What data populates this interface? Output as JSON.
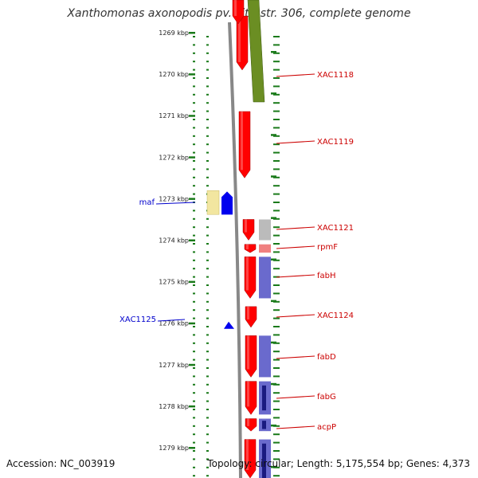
{
  "title": "Xanthomonas axonopodis pv. citri str. 306, complete genome",
  "footer": {
    "accession": "Accession: NC_003919",
    "topology": "Topology: circular; Length: 5,175,554 bp; Genes: 4,373"
  },
  "colors": {
    "backbone": "#888888",
    "cds": "#ff0000",
    "right_label": "#cc0000",
    "left_label": "#0000cc",
    "left_strand": "#0000ee",
    "tick": "#1a7a1a",
    "trna_olive": "#6b8e23",
    "pale_yellow": "#f2e6a0",
    "grey_feature": "#bbbbbb",
    "periwinkle": "#6a6acd",
    "navy": "#1a1a80"
  },
  "axis": {
    "ticks": [
      {
        "kbp": 1269,
        "label": "1269 kbp"
      },
      {
        "kbp": 1270,
        "label": "1270 kbp"
      },
      {
        "kbp": 1271,
        "label": "1271 kbp"
      },
      {
        "kbp": 1272,
        "label": "1272 kbp"
      },
      {
        "kbp": 1273,
        "label": "1273 kbp"
      },
      {
        "kbp": 1274,
        "label": "1274 kbp"
      },
      {
        "kbp": 1275,
        "label": "1275 kbp"
      },
      {
        "kbp": 1276,
        "label": "1276 kbp"
      },
      {
        "kbp": 1277,
        "label": "1277 kbp"
      },
      {
        "kbp": 1278,
        "label": "1278 kbp"
      },
      {
        "kbp": 1279,
        "label": "1279 kbp"
      }
    ]
  },
  "genes": {
    "right": [
      {
        "name": "XAC1118",
        "start_kbp": 1268.6,
        "end_kbp": 1269.9
      },
      {
        "name": "XAC1119",
        "start_kbp": 1270.9,
        "end_kbp": 1272.5
      },
      {
        "name": "XAC1121",
        "start_kbp": 1273.5,
        "end_kbp": 1274.0
      },
      {
        "name": "rpmF",
        "start_kbp": 1274.1,
        "end_kbp": 1274.3
      },
      {
        "name": "fabH",
        "start_kbp": 1274.4,
        "end_kbp": 1275.4
      },
      {
        "name": "XAC1124",
        "start_kbp": 1275.6,
        "end_kbp": 1276.1
      },
      {
        "name": "fabD",
        "start_kbp": 1276.3,
        "end_kbp": 1277.3
      },
      {
        "name": "fabG",
        "start_kbp": 1277.4,
        "end_kbp": 1278.2
      },
      {
        "name": "acpP",
        "start_kbp": 1278.3,
        "end_kbp": 1278.6
      }
    ],
    "left": [
      {
        "name": "maf",
        "start_kbp": 1272.9,
        "end_kbp": 1273.5
      },
      {
        "name": "XAC1125",
        "start_kbp": 1275.9,
        "end_kbp": 1276.1
      }
    ]
  }
}
